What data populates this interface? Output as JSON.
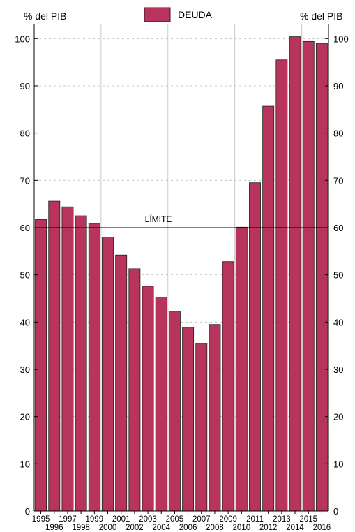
{
  "chart_data": {
    "type": "bar",
    "left_axis_unit": "% del PIB",
    "right_axis_unit": "% del PIB",
    "legend": "DEUDA",
    "annotation": "LÍMITE",
    "limit_value": 60,
    "ylim": [
      0,
      103
    ],
    "yticks": [
      0,
      10,
      20,
      30,
      40,
      50,
      60,
      70,
      80,
      90,
      100
    ],
    "categories": [
      "1995",
      "1996",
      "1997",
      "1998",
      "1999",
      "2000",
      "2001",
      "2002",
      "2003",
      "2004",
      "2005",
      "2006",
      "2007",
      "2008",
      "2009",
      "2010",
      "2011",
      "2012",
      "2013",
      "2014",
      "2015",
      "2016"
    ],
    "values": [
      61.7,
      65.6,
      64.4,
      62.5,
      60.9,
      58.0,
      54.2,
      51.3,
      47.6,
      45.3,
      42.3,
      38.9,
      35.5,
      39.5,
      52.8,
      60.1,
      69.5,
      85.7,
      95.5,
      100.4,
      99.4,
      99.0
    ],
    "grid": "dashed horizontal",
    "legend_position": "top-center",
    "colors": {
      "bar": "#b8345c",
      "bar_edge": "#222222",
      "grid": "#bbbbbb",
      "axis": "#000000"
    }
  }
}
